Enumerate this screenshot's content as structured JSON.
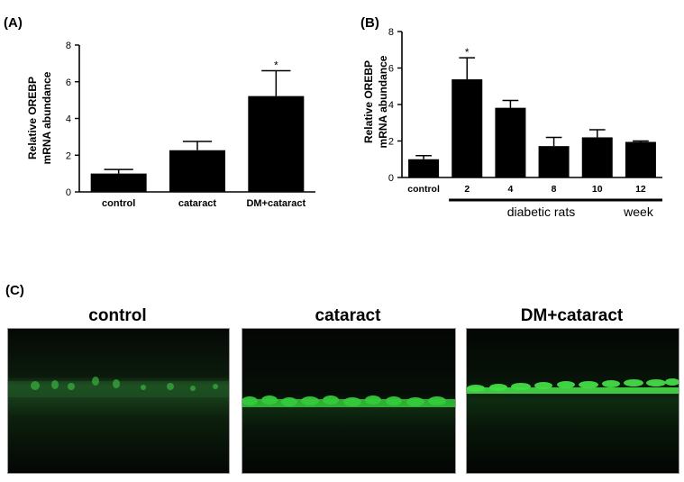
{
  "panels": {
    "a_label": "(A)",
    "b_label": "(B)",
    "c_label": "(C)"
  },
  "chart_data": [
    {
      "type": "bar",
      "categories": [
        "control",
        "cataract",
        "DM+cataract"
      ],
      "values": [
        1.0,
        2.27,
        5.22
      ],
      "errors": [
        0.22,
        0.48,
        1.38
      ],
      "significance": [
        "",
        "",
        "*"
      ],
      "ylabel": [
        "Relative OREBP",
        "mRNA abundance"
      ],
      "ylim": [
        0,
        8
      ],
      "yticks": [
        0,
        2,
        4,
        6,
        8
      ],
      "grid": false,
      "colors": {
        "bar": "#000000"
      }
    },
    {
      "type": "bar",
      "categories": [
        "control",
        "2",
        "4",
        "8",
        "10",
        "12"
      ],
      "values": [
        1.0,
        5.38,
        3.82,
        1.72,
        2.2,
        1.95
      ],
      "errors": [
        0.2,
        1.18,
        0.4,
        0.48,
        0.42,
        0.05
      ],
      "significance": [
        "",
        "*",
        "",
        "",
        "",
        ""
      ],
      "group_label": "diabetic rats",
      "unit_label": "week",
      "ylabel": [
        "Relative OREBP",
        "mRNA abundance"
      ],
      "ylim": [
        0,
        8
      ],
      "yticks": [
        0,
        2,
        4,
        6,
        8
      ],
      "grid": false,
      "colors": {
        "bar": "#000000"
      }
    }
  ],
  "micrographs": [
    {
      "title": "control",
      "stain_color": "#39a93f"
    },
    {
      "title": "cataract",
      "stain_color": "#35c93c"
    },
    {
      "title": "DM+cataract",
      "stain_color": "#45dc48"
    }
  ]
}
